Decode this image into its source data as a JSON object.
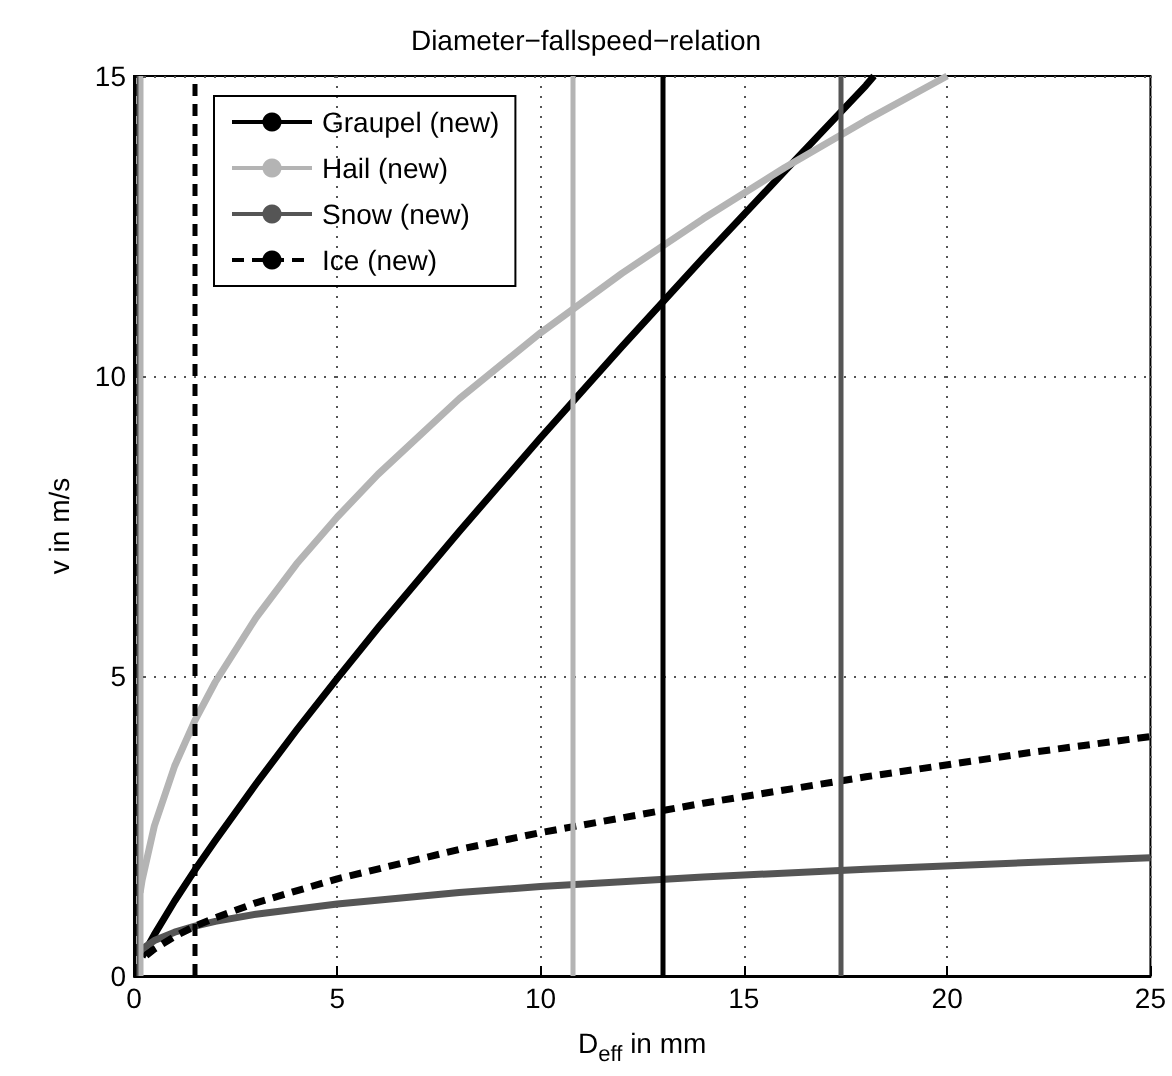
{
  "chart_data": {
    "type": "line",
    "title": "Diameter−fallspeed−relation",
    "xlabel": "D$_{eff}$ in mm",
    "ylabel": "v in m/s",
    "xlim": [
      0,
      25
    ],
    "xticks": [
      0,
      5,
      10,
      15,
      20,
      25
    ],
    "ylim": [
      0,
      15
    ],
    "yticks": [
      0,
      5,
      10,
      15
    ],
    "grid": true,
    "legend": "top left",
    "marker": "none",
    "series": [
      {
        "name": "Graupel (new)",
        "color": "#000000",
        "line_style": "solid",
        "x": [
          0.2,
          0.5,
          1,
          1.5,
          2,
          3,
          4,
          5,
          6,
          8,
          10,
          12,
          14,
          16,
          18,
          18.2
        ],
        "values": [
          0.32,
          0.69,
          1.25,
          1.77,
          2.26,
          3.2,
          4.1,
          4.96,
          5.8,
          7.41,
          8.97,
          10.49,
          11.97,
          13.41,
          14.84,
          15
        ]
      },
      {
        "name": "Hail (new)",
        "color": "#b4b4b4",
        "line_style": "solid",
        "x": [
          0.15,
          0.2,
          0.5,
          1,
          1.5,
          2,
          3,
          4,
          5,
          6,
          8,
          10,
          12,
          14,
          16,
          18,
          20
        ],
        "values": [
          1.39,
          1.6,
          2.5,
          3.5,
          4.26,
          4.9,
          5.97,
          6.87,
          7.65,
          8.36,
          9.62,
          10.72,
          11.71,
          12.62,
          13.47,
          14.26,
          15
        ]
      },
      {
        "name": "Snow (new)",
        "color": "#555555",
        "line_style": "solid",
        "x": [
          0.1,
          0.2,
          0.5,
          1,
          1.5,
          2,
          3,
          5,
          8,
          10,
          14,
          18,
          22,
          25
        ],
        "values": [
          0.36,
          0.45,
          0.59,
          0.73,
          0.83,
          0.91,
          1.03,
          1.2,
          1.39,
          1.49,
          1.65,
          1.78,
          1.89,
          1.97
        ]
      },
      {
        "name": "Ice (new)",
        "color": "#000000",
        "line_style": "dashed",
        "x": [
          0.3,
          0.5,
          1,
          1.5,
          2,
          3,
          5,
          8,
          10,
          14,
          18,
          22,
          25
        ],
        "values": [
          0.34,
          0.45,
          0.66,
          0.83,
          0.97,
          1.22,
          1.62,
          2.11,
          2.39,
          2.88,
          3.32,
          3.72,
          3.99
        ]
      }
    ],
    "ref_lines": [
      {
        "axis": "x",
        "value": 0.05,
        "color": "#000000",
        "line_style": "dashed"
      },
      {
        "axis": "x",
        "value": 0.1,
        "color": "#555555",
        "line_style": "solid"
      },
      {
        "axis": "x",
        "value": 0.15,
        "color": "#b4b4b4",
        "line_style": "solid"
      },
      {
        "axis": "x",
        "value": 1.5,
        "color": "#000000",
        "line_style": "dashed"
      },
      {
        "axis": "x",
        "value": 10.8,
        "color": "#b4b4b4",
        "line_style": "solid"
      },
      {
        "axis": "x",
        "value": 13,
        "color": "#000000",
        "line_style": "solid"
      },
      {
        "axis": "x",
        "value": 17.4,
        "color": "#555555",
        "line_style": "solid"
      }
    ]
  }
}
